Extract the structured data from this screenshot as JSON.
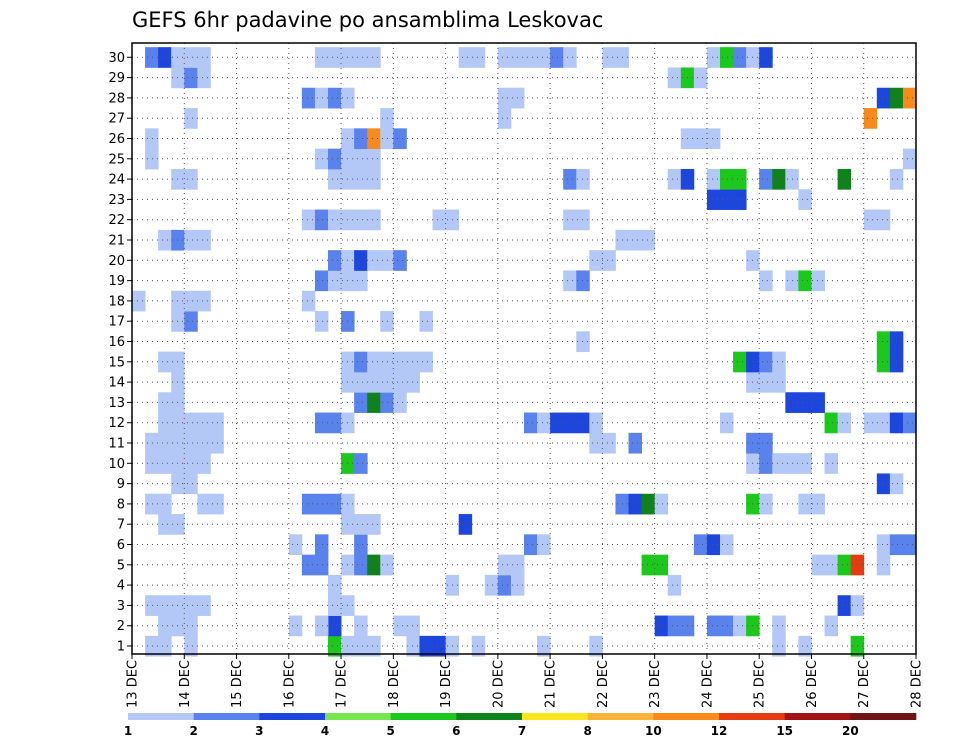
{
  "chart_data": {
    "type": "heatmap",
    "title": "GEFS 6hr padavine po ansamblima Leskovac",
    "x_tick_labels": [
      "13 DEC",
      "14 DEC",
      "15 DEC",
      "16 DEC",
      "17 DEC",
      "18 DEC",
      "19 DEC",
      "20 DEC",
      "21 DEC",
      "22 DEC",
      "23 DEC",
      "24 DEC",
      "25 DEC",
      "26 DEC",
      "27 DEC",
      "28 DEC"
    ],
    "y_tick_labels": [
      "1",
      "2",
      "3",
      "4",
      "5",
      "6",
      "7",
      "8",
      "9",
      "10",
      "11",
      "12",
      "13",
      "14",
      "15",
      "16",
      "17",
      "18",
      "19",
      "20",
      "21",
      "22",
      "23",
      "24",
      "25",
      "26",
      "27",
      "28",
      "29",
      "30"
    ],
    "grid": true,
    "colorbar": {
      "labels": [
        "1",
        "2",
        "3",
        "4",
        "5",
        "6",
        "7",
        "8",
        "10",
        "12",
        "15",
        "20"
      ],
      "colors": [
        "#b4c8f8",
        "#5a82ec",
        "#1c46dc",
        "#78e650",
        "#1cc81c",
        "#10821c",
        "#fae61c",
        "#f8b43a",
        "#f88a1c",
        "#e63c14",
        "#a01414",
        "#6e1414"
      ]
    },
    "cells": [
      [
        1,
        1,
        1
      ],
      [
        1,
        2,
        1
      ],
      [
        1,
        4,
        1
      ],
      [
        1,
        21,
        1
      ],
      [
        1,
        22,
        3
      ],
      [
        1,
        23,
        3
      ],
      [
        1,
        24,
        1
      ],
      [
        1,
        26,
        1
      ],
      [
        1,
        31,
        1
      ],
      [
        1,
        35,
        1
      ],
      [
        1,
        49,
        1
      ],
      [
        1,
        51,
        1
      ],
      [
        1,
        55,
        5
      ],
      [
        1,
        15,
        5
      ],
      [
        1,
        16,
        1
      ],
      [
        1,
        17,
        1
      ],
      [
        1,
        18,
        1
      ],
      [
        2,
        2,
        1
      ],
      [
        2,
        3,
        1
      ],
      [
        2,
        4,
        1
      ],
      [
        2,
        17,
        1
      ],
      [
        2,
        20,
        1
      ],
      [
        2,
        21,
        1
      ],
      [
        2,
        40,
        3
      ],
      [
        2,
        41,
        2
      ],
      [
        2,
        42,
        2
      ],
      [
        2,
        44,
        2
      ],
      [
        2,
        45,
        2
      ],
      [
        2,
        46,
        1
      ],
      [
        2,
        47,
        5
      ],
      [
        2,
        49,
        1
      ],
      [
        2,
        53,
        1
      ],
      [
        2,
        15,
        3
      ],
      [
        2,
        14,
        1
      ],
      [
        2,
        12,
        1
      ],
      [
        3,
        1,
        1
      ],
      [
        3,
        2,
        1
      ],
      [
        3,
        3,
        1
      ],
      [
        3,
        4,
        1
      ],
      [
        3,
        5,
        1
      ],
      [
        3,
        15,
        1
      ],
      [
        3,
        16,
        1
      ],
      [
        3,
        54,
        3
      ],
      [
        3,
        55,
        1
      ],
      [
        4,
        15,
        1
      ],
      [
        4,
        27,
        1
      ],
      [
        4,
        28,
        2
      ],
      [
        4,
        29,
        1
      ],
      [
        4,
        24,
        1
      ],
      [
        4,
        41,
        1
      ],
      [
        5,
        13,
        2
      ],
      [
        5,
        14,
        2
      ],
      [
        5,
        16,
        1
      ],
      [
        5,
        17,
        2
      ],
      [
        5,
        18,
        6
      ],
      [
        5,
        19,
        1
      ],
      [
        5,
        28,
        1
      ],
      [
        5,
        29,
        1
      ],
      [
        5,
        39,
        5
      ],
      [
        5,
        40,
        5
      ],
      [
        5,
        53,
        1
      ],
      [
        5,
        54,
        5
      ],
      [
        5,
        55,
        10
      ],
      [
        5,
        57,
        1
      ],
      [
        5,
        52,
        1
      ],
      [
        6,
        12,
        1
      ],
      [
        6,
        14,
        2
      ],
      [
        6,
        17,
        2
      ],
      [
        6,
        30,
        2
      ],
      [
        6,
        31,
        1
      ],
      [
        6,
        43,
        2
      ],
      [
        6,
        44,
        3
      ],
      [
        6,
        45,
        1
      ],
      [
        6,
        57,
        1
      ],
      [
        6,
        58,
        2
      ],
      [
        6,
        59,
        2
      ],
      [
        7,
        2,
        1
      ],
      [
        7,
        3,
        1
      ],
      [
        7,
        16,
        1
      ],
      [
        7,
        17,
        1
      ],
      [
        7,
        18,
        1
      ],
      [
        7,
        25,
        3
      ],
      [
        8,
        1,
        1
      ],
      [
        8,
        2,
        1
      ],
      [
        8,
        5,
        1
      ],
      [
        8,
        6,
        1
      ],
      [
        8,
        13,
        2
      ],
      [
        8,
        14,
        2
      ],
      [
        8,
        15,
        2
      ],
      [
        8,
        16,
        1
      ],
      [
        8,
        37,
        2
      ],
      [
        8,
        38,
        3
      ],
      [
        8,
        39,
        6
      ],
      [
        8,
        40,
        1
      ],
      [
        8,
        47,
        5
      ],
      [
        8,
        48,
        1
      ],
      [
        8,
        51,
        1
      ],
      [
        8,
        52,
        1
      ],
      [
        9,
        3,
        1
      ],
      [
        9,
        4,
        1
      ],
      [
        9,
        57,
        3
      ],
      [
        9,
        58,
        1
      ],
      [
        10,
        1,
        1
      ],
      [
        10,
        2,
        1
      ],
      [
        10,
        3,
        1
      ],
      [
        10,
        4,
        1
      ],
      [
        10,
        5,
        1
      ],
      [
        10,
        16,
        5
      ],
      [
        10,
        17,
        2
      ],
      [
        10,
        47,
        1
      ],
      [
        10,
        48,
        2
      ],
      [
        10,
        49,
        1
      ],
      [
        10,
        50,
        1
      ],
      [
        10,
        51,
        1
      ],
      [
        10,
        53,
        1
      ],
      [
        11,
        1,
        1
      ],
      [
        11,
        2,
        1
      ],
      [
        11,
        3,
        1
      ],
      [
        11,
        4,
        1
      ],
      [
        11,
        5,
        1
      ],
      [
        11,
        6,
        1
      ],
      [
        11,
        35,
        1
      ],
      [
        11,
        36,
        1
      ],
      [
        11,
        38,
        2
      ],
      [
        11,
        47,
        2
      ],
      [
        11,
        48,
        2
      ],
      [
        12,
        2,
        1
      ],
      [
        12,
        3,
        1
      ],
      [
        12,
        4,
        1
      ],
      [
        12,
        5,
        1
      ],
      [
        12,
        6,
        1
      ],
      [
        12,
        14,
        2
      ],
      [
        12,
        15,
        2
      ],
      [
        12,
        16,
        1
      ],
      [
        12,
        30,
        2
      ],
      [
        12,
        31,
        1
      ],
      [
        12,
        32,
        3
      ],
      [
        12,
        33,
        3
      ],
      [
        12,
        34,
        3
      ],
      [
        12,
        35,
        1
      ],
      [
        12,
        45,
        1
      ],
      [
        12,
        53,
        5
      ],
      [
        12,
        54,
        1
      ],
      [
        12,
        56,
        1
      ],
      [
        12,
        57,
        1
      ],
      [
        12,
        58,
        3
      ],
      [
        12,
        59,
        2
      ],
      [
        13,
        2,
        1
      ],
      [
        13,
        3,
        1
      ],
      [
        13,
        17,
        2
      ],
      [
        13,
        18,
        6
      ],
      [
        13,
        19,
        2
      ],
      [
        13,
        20,
        1
      ],
      [
        13,
        50,
        3
      ],
      [
        13,
        51,
        3
      ],
      [
        13,
        52,
        3
      ],
      [
        14,
        3,
        1
      ],
      [
        14,
        16,
        1
      ],
      [
        14,
        17,
        1
      ],
      [
        14,
        18,
        1
      ],
      [
        14,
        19,
        1
      ],
      [
        14,
        20,
        1
      ],
      [
        14,
        21,
        1
      ],
      [
        14,
        47,
        1
      ],
      [
        14,
        48,
        1
      ],
      [
        14,
        49,
        1
      ],
      [
        15,
        2,
        1
      ],
      [
        15,
        3,
        1
      ],
      [
        15,
        16,
        1
      ],
      [
        15,
        17,
        2
      ],
      [
        15,
        18,
        1
      ],
      [
        15,
        19,
        1
      ],
      [
        15,
        20,
        1
      ],
      [
        15,
        21,
        1
      ],
      [
        15,
        22,
        1
      ],
      [
        15,
        46,
        5
      ],
      [
        15,
        47,
        3
      ],
      [
        15,
        48,
        2
      ],
      [
        15,
        49,
        1
      ],
      [
        15,
        57,
        5
      ],
      [
        15,
        58,
        3
      ],
      [
        16,
        34,
        1
      ],
      [
        16,
        57,
        5
      ],
      [
        16,
        58,
        3
      ],
      [
        17,
        3,
        1
      ],
      [
        17,
        4,
        2
      ],
      [
        17,
        14,
        1
      ],
      [
        17,
        16,
        2
      ],
      [
        17,
        19,
        1
      ],
      [
        17,
        22,
        1
      ],
      [
        18,
        0,
        1
      ],
      [
        18,
        3,
        1
      ],
      [
        18,
        4,
        1
      ],
      [
        18,
        5,
        1
      ],
      [
        18,
        13,
        1
      ],
      [
        19,
        14,
        2
      ],
      [
        19,
        15,
        1
      ],
      [
        19,
        16,
        1
      ],
      [
        19,
        17,
        1
      ],
      [
        19,
        33,
        1
      ],
      [
        19,
        34,
        2
      ],
      [
        19,
        48,
        1
      ],
      [
        19,
        50,
        1
      ],
      [
        19,
        51,
        5
      ],
      [
        19,
        52,
        1
      ],
      [
        20,
        15,
        2
      ],
      [
        20,
        16,
        1
      ],
      [
        20,
        17,
        3
      ],
      [
        20,
        18,
        1
      ],
      [
        20,
        19,
        1
      ],
      [
        20,
        20,
        2
      ],
      [
        20,
        35,
        1
      ],
      [
        20,
        36,
        1
      ],
      [
        20,
        47,
        1
      ],
      [
        21,
        2,
        1
      ],
      [
        21,
        3,
        2
      ],
      [
        21,
        4,
        1
      ],
      [
        21,
        5,
        1
      ],
      [
        21,
        37,
        1
      ],
      [
        21,
        38,
        1
      ],
      [
        21,
        39,
        1
      ],
      [
        22,
        13,
        1
      ],
      [
        22,
        14,
        2
      ],
      [
        22,
        15,
        1
      ],
      [
        22,
        16,
        1
      ],
      [
        22,
        17,
        1
      ],
      [
        22,
        18,
        1
      ],
      [
        22,
        23,
        1
      ],
      [
        22,
        24,
        1
      ],
      [
        22,
        33,
        1
      ],
      [
        22,
        34,
        1
      ],
      [
        22,
        56,
        1
      ],
      [
        22,
        57,
        1
      ],
      [
        23,
        44,
        3
      ],
      [
        23,
        45,
        3
      ],
      [
        23,
        46,
        3
      ],
      [
        23,
        51,
        1
      ],
      [
        24,
        3,
        1
      ],
      [
        24,
        4,
        1
      ],
      [
        24,
        15,
        1
      ],
      [
        24,
        16,
        1
      ],
      [
        24,
        17,
        1
      ],
      [
        24,
        18,
        1
      ],
      [
        24,
        33,
        2
      ],
      [
        24,
        34,
        1
      ],
      [
        24,
        41,
        1
      ],
      [
        24,
        42,
        3
      ],
      [
        24,
        44,
        1
      ],
      [
        24,
        45,
        5
      ],
      [
        24,
        46,
        5
      ],
      [
        24,
        48,
        2
      ],
      [
        24,
        49,
        6
      ],
      [
        24,
        50,
        1
      ],
      [
        24,
        54,
        6
      ],
      [
        24,
        58,
        1
      ],
      [
        25,
        1,
        1
      ],
      [
        25,
        14,
        1
      ],
      [
        25,
        15,
        2
      ],
      [
        25,
        16,
        1
      ],
      [
        25,
        17,
        1
      ],
      [
        25,
        18,
        1
      ],
      [
        25,
        59,
        1
      ],
      [
        26,
        1,
        1
      ],
      [
        26,
        16,
        1
      ],
      [
        26,
        17,
        2
      ],
      [
        26,
        18,
        9
      ],
      [
        26,
        19,
        1
      ],
      [
        26,
        20,
        2
      ],
      [
        26,
        42,
        1
      ],
      [
        26,
        43,
        1
      ],
      [
        26,
        44,
        1
      ],
      [
        27,
        4,
        1
      ],
      [
        27,
        19,
        1
      ],
      [
        27,
        28,
        1
      ],
      [
        27,
        56,
        9
      ],
      [
        28,
        13,
        2
      ],
      [
        28,
        14,
        1
      ],
      [
        28,
        15,
        2
      ],
      [
        28,
        16,
        1
      ],
      [
        28,
        28,
        1
      ],
      [
        28,
        29,
        1
      ],
      [
        28,
        57,
        3
      ],
      [
        28,
        58,
        6
      ],
      [
        28,
        59,
        9
      ],
      [
        29,
        3,
        1
      ],
      [
        29,
        4,
        2
      ],
      [
        29,
        5,
        1
      ],
      [
        29,
        41,
        1
      ],
      [
        29,
        42,
        5
      ],
      [
        29,
        43,
        1
      ],
      [
        30,
        1,
        2
      ],
      [
        30,
        2,
        3
      ],
      [
        30,
        3,
        1
      ],
      [
        30,
        4,
        1
      ],
      [
        30,
        5,
        1
      ],
      [
        30,
        14,
        1
      ],
      [
        30,
        15,
        1
      ],
      [
        30,
        16,
        1
      ],
      [
        30,
        17,
        1
      ],
      [
        30,
        18,
        1
      ],
      [
        30,
        25,
        1
      ],
      [
        30,
        26,
        1
      ],
      [
        30,
        28,
        1
      ],
      [
        30,
        29,
        1
      ],
      [
        30,
        30,
        1
      ],
      [
        30,
        31,
        1
      ],
      [
        30,
        32,
        2
      ],
      [
        30,
        33,
        1
      ],
      [
        30,
        36,
        1
      ],
      [
        30,
        37,
        1
      ],
      [
        30,
        44,
        1
      ],
      [
        30,
        45,
        5
      ],
      [
        30,
        46,
        2
      ],
      [
        30,
        47,
        1
      ],
      [
        30,
        48,
        3
      ]
    ]
  }
}
